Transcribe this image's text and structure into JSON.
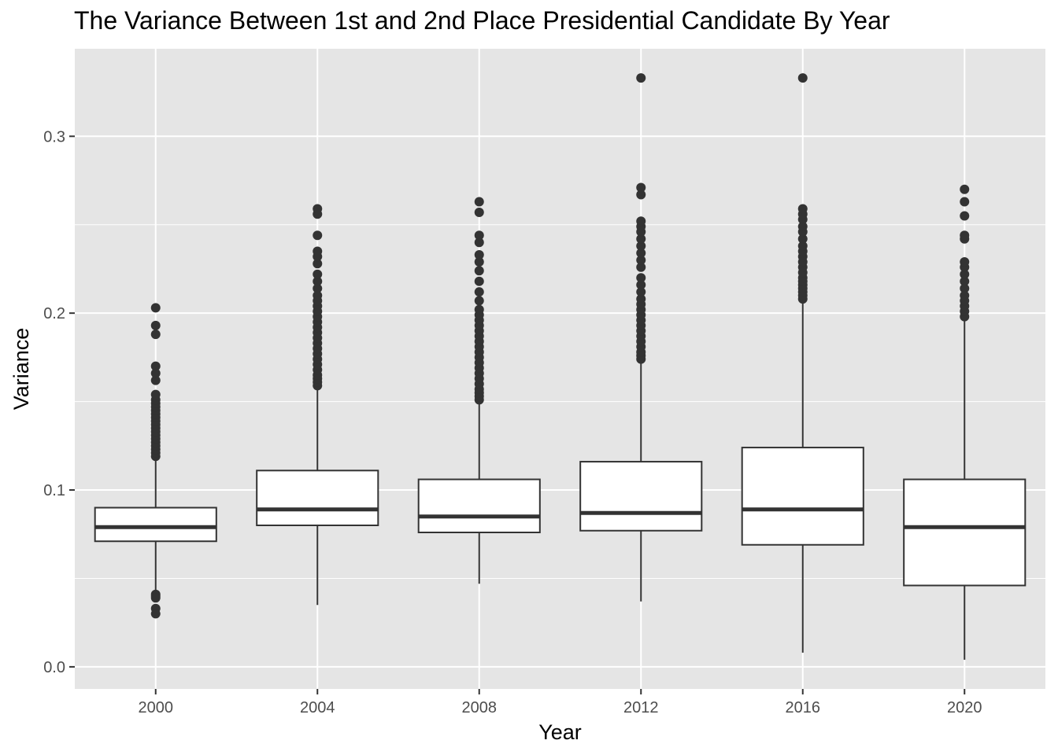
{
  "chart_data": {
    "type": "boxplot",
    "title": "The Variance Between 1st and 2nd Place Presidential Candidate By Year",
    "xlabel": "Year",
    "ylabel": "Variance",
    "categories": [
      "2000",
      "2004",
      "2008",
      "2012",
      "2016",
      "2020"
    ],
    "ylim": [
      -0.0125,
      0.3495
    ],
    "yticks": [
      0.0,
      0.1,
      0.2,
      0.3
    ],
    "ytick_labels": [
      "0.0",
      "0.1",
      "0.2",
      "0.3"
    ],
    "grid": true,
    "legend": "none",
    "colors": {
      "panel": "#e5e5e5",
      "grid": "#ffffff",
      "box_fill": "#ffffff",
      "box_line": "#333333",
      "outlier": "#333333",
      "tick_text": "#4d4d4d"
    },
    "boxes": [
      {
        "category": "2000",
        "whisker_low": 0.042,
        "q1": 0.071,
        "median": 0.079,
        "q3": 0.09,
        "whisker_high": 0.118,
        "outliers": [
          0.041,
          0.04,
          0.039,
          0.033,
          0.03,
          0.119,
          0.121,
          0.123,
          0.125,
          0.127,
          0.129,
          0.131,
          0.133,
          0.135,
          0.137,
          0.139,
          0.141,
          0.143,
          0.145,
          0.147,
          0.149,
          0.151,
          0.154,
          0.162,
          0.166,
          0.17,
          0.188,
          0.193,
          0.203
        ]
      },
      {
        "category": "2004",
        "whisker_low": 0.035,
        "q1": 0.08,
        "median": 0.089,
        "q3": 0.111,
        "whisker_high": 0.157,
        "outliers": [
          0.159,
          0.161,
          0.163,
          0.165,
          0.168,
          0.171,
          0.174,
          0.177,
          0.18,
          0.183,
          0.186,
          0.189,
          0.192,
          0.195,
          0.198,
          0.201,
          0.204,
          0.207,
          0.21,
          0.214,
          0.218,
          0.222,
          0.228,
          0.232,
          0.235,
          0.244,
          0.256,
          0.259
        ]
      },
      {
        "category": "2008",
        "whisker_low": 0.047,
        "q1": 0.076,
        "median": 0.085,
        "q3": 0.106,
        "whisker_high": 0.149,
        "outliers": [
          0.151,
          0.153,
          0.155,
          0.157,
          0.16,
          0.163,
          0.166,
          0.169,
          0.172,
          0.175,
          0.178,
          0.181,
          0.184,
          0.187,
          0.19,
          0.193,
          0.196,
          0.199,
          0.202,
          0.207,
          0.212,
          0.218,
          0.224,
          0.229,
          0.233,
          0.24,
          0.244,
          0.257,
          0.263
        ]
      },
      {
        "category": "2012",
        "whisker_low": 0.037,
        "q1": 0.077,
        "median": 0.087,
        "q3": 0.116,
        "whisker_high": 0.172,
        "outliers": [
          0.174,
          0.176,
          0.178,
          0.181,
          0.184,
          0.187,
          0.19,
          0.193,
          0.196,
          0.199,
          0.202,
          0.205,
          0.208,
          0.212,
          0.216,
          0.22,
          0.226,
          0.23,
          0.234,
          0.238,
          0.242,
          0.246,
          0.249,
          0.252,
          0.267,
          0.271,
          0.333
        ]
      },
      {
        "category": "2016",
        "whisker_low": 0.008,
        "q1": 0.069,
        "median": 0.089,
        "q3": 0.124,
        "whisker_high": 0.206,
        "outliers": [
          0.208,
          0.21,
          0.212,
          0.214,
          0.216,
          0.218,
          0.22,
          0.223,
          0.226,
          0.229,
          0.232,
          0.235,
          0.238,
          0.242,
          0.246,
          0.249,
          0.253,
          0.256,
          0.259,
          0.333
        ]
      },
      {
        "category": "2020",
        "whisker_low": 0.004,
        "q1": 0.046,
        "median": 0.079,
        "q3": 0.106,
        "whisker_high": 0.196,
        "outliers": [
          0.198,
          0.201,
          0.204,
          0.207,
          0.21,
          0.214,
          0.218,
          0.222,
          0.226,
          0.229,
          0.242,
          0.244,
          0.255,
          0.263,
          0.27
        ]
      }
    ]
  }
}
